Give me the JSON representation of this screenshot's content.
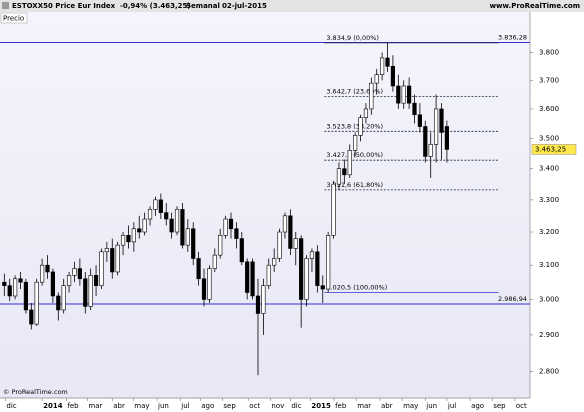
{
  "header": {
    "title": "ESTOXX50 Price Eur Index",
    "change": "-0,94% (3.463,25)",
    "period": "Semanal",
    "date": "02-jul-2015",
    "site": "www.ProRealTime.com"
  },
  "chart_data": {
    "type": "candlestick",
    "panel_label": "Precio",
    "footer": "© ProRealTime.com",
    "log_scale": true,
    "up_color": "#ffffff",
    "down_color": "#000000",
    "line_color": "#3333cc",
    "open": [
      3050,
      3040,
      3010,
      3060,
      3050,
      2970,
      2930,
      3050,
      3100,
      3080,
      3010,
      2970,
      3040,
      3070,
      3090,
      3060,
      2980,
      3070,
      3040,
      3140,
      3150,
      3080,
      3160,
      3190,
      3170,
      3210,
      3200,
      3240,
      3270,
      3300,
      3260,
      3240,
      3200,
      3270,
      3160,
      3210,
      3120,
      3060,
      3000,
      3090,
      3130,
      3190,
      3240,
      3210,
      3180,
      3110,
      3110,
      3010,
      2960,
      3040,
      3100,
      3120,
      3200,
      3250,
      3150,
      3180,
      3000,
      3120,
      3140,
      3040,
      3030,
      3190,
      3350,
      3400,
      3380,
      3460,
      3510,
      3570,
      3600,
      3690,
      3720,
      3780,
      3750,
      3680,
      3620,
      3680,
      3620,
      3580,
      3540,
      3440,
      3480,
      3600,
      3540
    ],
    "high": [
      3075,
      3060,
      3070,
      3080,
      3060,
      2990,
      3060,
      3120,
      3130,
      3090,
      3020,
      3060,
      3080,
      3110,
      3120,
      3080,
      3090,
      3100,
      3150,
      3170,
      3180,
      3170,
      3200,
      3220,
      3230,
      3250,
      3260,
      3280,
      3310,
      3320,
      3290,
      3260,
      3280,
      3290,
      3240,
      3230,
      3140,
      3090,
      3100,
      3150,
      3210,
      3250,
      3260,
      3230,
      3200,
      3120,
      3120,
      3060,
      3060,
      3120,
      3150,
      3210,
      3260,
      3270,
      3200,
      3190,
      3130,
      3150,
      3160,
      3070,
      3200,
      3360,
      3420,
      3430,
      3480,
      3520,
      3580,
      3620,
      3710,
      3740,
      3800,
      3835,
      3790,
      3720,
      3700,
      3710,
      3650,
      3620,
      3560,
      3520,
      3650,
      3620,
      3560
    ],
    "low": [
      3010,
      2995,
      3000,
      3030,
      2960,
      2915,
      2925,
      3040,
      3060,
      2990,
      2940,
      2960,
      3020,
      3050,
      3040,
      2960,
      2970,
      3010,
      3030,
      3110,
      3060,
      3070,
      3130,
      3150,
      3140,
      3180,
      3190,
      3220,
      3250,
      3240,
      3220,
      3180,
      3190,
      3150,
      3140,
      3100,
      3040,
      2980,
      2990,
      3080,
      3120,
      3180,
      3180,
      3150,
      3100,
      3000,
      3000,
      2790,
      2900,
      3030,
      3080,
      3110,
      3180,
      3130,
      3100,
      2920,
      2980,
      3080,
      3020,
      2990,
      3020,
      3180,
      3330,
      3350,
      3370,
      3440,
      3490,
      3550,
      3580,
      3650,
      3700,
      3730,
      3660,
      3600,
      3600,
      3600,
      3550,
      3520,
      3420,
      3370,
      3420,
      3430,
      3420
    ],
    "close": [
      3040,
      3010,
      3060,
      3050,
      2970,
      2930,
      3050,
      3100,
      3080,
      3010,
      2970,
      3040,
      3070,
      3090,
      3060,
      2980,
      3070,
      3040,
      3140,
      3150,
      3080,
      3160,
      3190,
      3170,
      3210,
      3200,
      3240,
      3270,
      3300,
      3260,
      3240,
      3200,
      3270,
      3160,
      3210,
      3120,
      3060,
      3000,
      3090,
      3130,
      3190,
      3240,
      3210,
      3180,
      3110,
      3020,
      3010,
      2960,
      3040,
      3100,
      3120,
      3200,
      3250,
      3150,
      3180,
      3000,
      3120,
      3140,
      3040,
      3030,
      3190,
      3350,
      3400,
      3380,
      3460,
      3510,
      3570,
      3600,
      3690,
      3720,
      3780,
      3750,
      3680,
      3620,
      3680,
      3620,
      3580,
      3540,
      3440,
      3480,
      3600,
      3520,
      3463.25
    ],
    "xlim": [
      -0.8,
      97.4
    ],
    "xticks": [
      {
        "value": 0.2,
        "label": "dic"
      },
      {
        "value": 7,
        "label": "2014"
      },
      {
        "value": 11.5,
        "label": "feb"
      },
      {
        "value": 15.4,
        "label": "mar"
      },
      {
        "value": 20,
        "label": "abr"
      },
      {
        "value": 23.9,
        "label": "may"
      },
      {
        "value": 28.3,
        "label": "jun"
      },
      {
        "value": 32.6,
        "label": "jul"
      },
      {
        "value": 36.3,
        "label": "ago"
      },
      {
        "value": 40.4,
        "label": "sep"
      },
      {
        "value": 45.2,
        "label": "oct"
      },
      {
        "value": 49.3,
        "label": "nov"
      },
      {
        "value": 53,
        "label": "dic"
      },
      {
        "value": 56.7,
        "label": "2015"
      },
      {
        "value": 61.1,
        "label": "feb"
      },
      {
        "value": 65.2,
        "label": "mar"
      },
      {
        "value": 69.6,
        "label": "abr"
      },
      {
        "value": 73.7,
        "label": "may"
      },
      {
        "value": 78,
        "label": "jun"
      },
      {
        "value": 82,
        "label": "jul"
      },
      {
        "value": 86.3,
        "label": "ago"
      },
      {
        "value": 90.4,
        "label": "sep"
      },
      {
        "value": 94.6,
        "label": "oct"
      }
    ],
    "ylim": [
      2730,
      3950
    ],
    "yticks": [
      {
        "value": 2800,
        "label": "2.800"
      },
      {
        "value": 2900,
        "label": "2.900"
      },
      {
        "value": 3000,
        "label": "3.000"
      },
      {
        "value": 3100,
        "label": "3.100"
      },
      {
        "value": 3200,
        "label": "3.200"
      },
      {
        "value": 3300,
        "label": "3.300"
      },
      {
        "value": 3400,
        "label": "3.400"
      },
      {
        "value": 3500,
        "label": "3.500"
      },
      {
        "value": 3600,
        "label": "3.600"
      },
      {
        "value": 3700,
        "label": "3.700"
      },
      {
        "value": 3800,
        "label": "3.800"
      }
    ],
    "hlines": [
      {
        "value": 3836.28,
        "label": "3.836,28"
      },
      {
        "value": 2986.94,
        "label": "2.986,94"
      }
    ],
    "fib_levels": [
      {
        "value": 3834.9,
        "label": "3.834,9 (0,00%)"
      },
      {
        "value": 3642.7,
        "label": "3.642,7 (23,60%)"
      },
      {
        "value": 3523.8,
        "label": "3.523,8 (38,20%)"
      },
      {
        "value": 3427.7,
        "label": "3.427,7 (50,00%)"
      },
      {
        "value": 3331.6,
        "label": "3.331,6 (61,80%)"
      },
      {
        "value": 3020.5,
        "label": "3.020,5 (100,00%)"
      }
    ],
    "last_price": {
      "value": 3463.25,
      "label": "3.463,25"
    }
  }
}
